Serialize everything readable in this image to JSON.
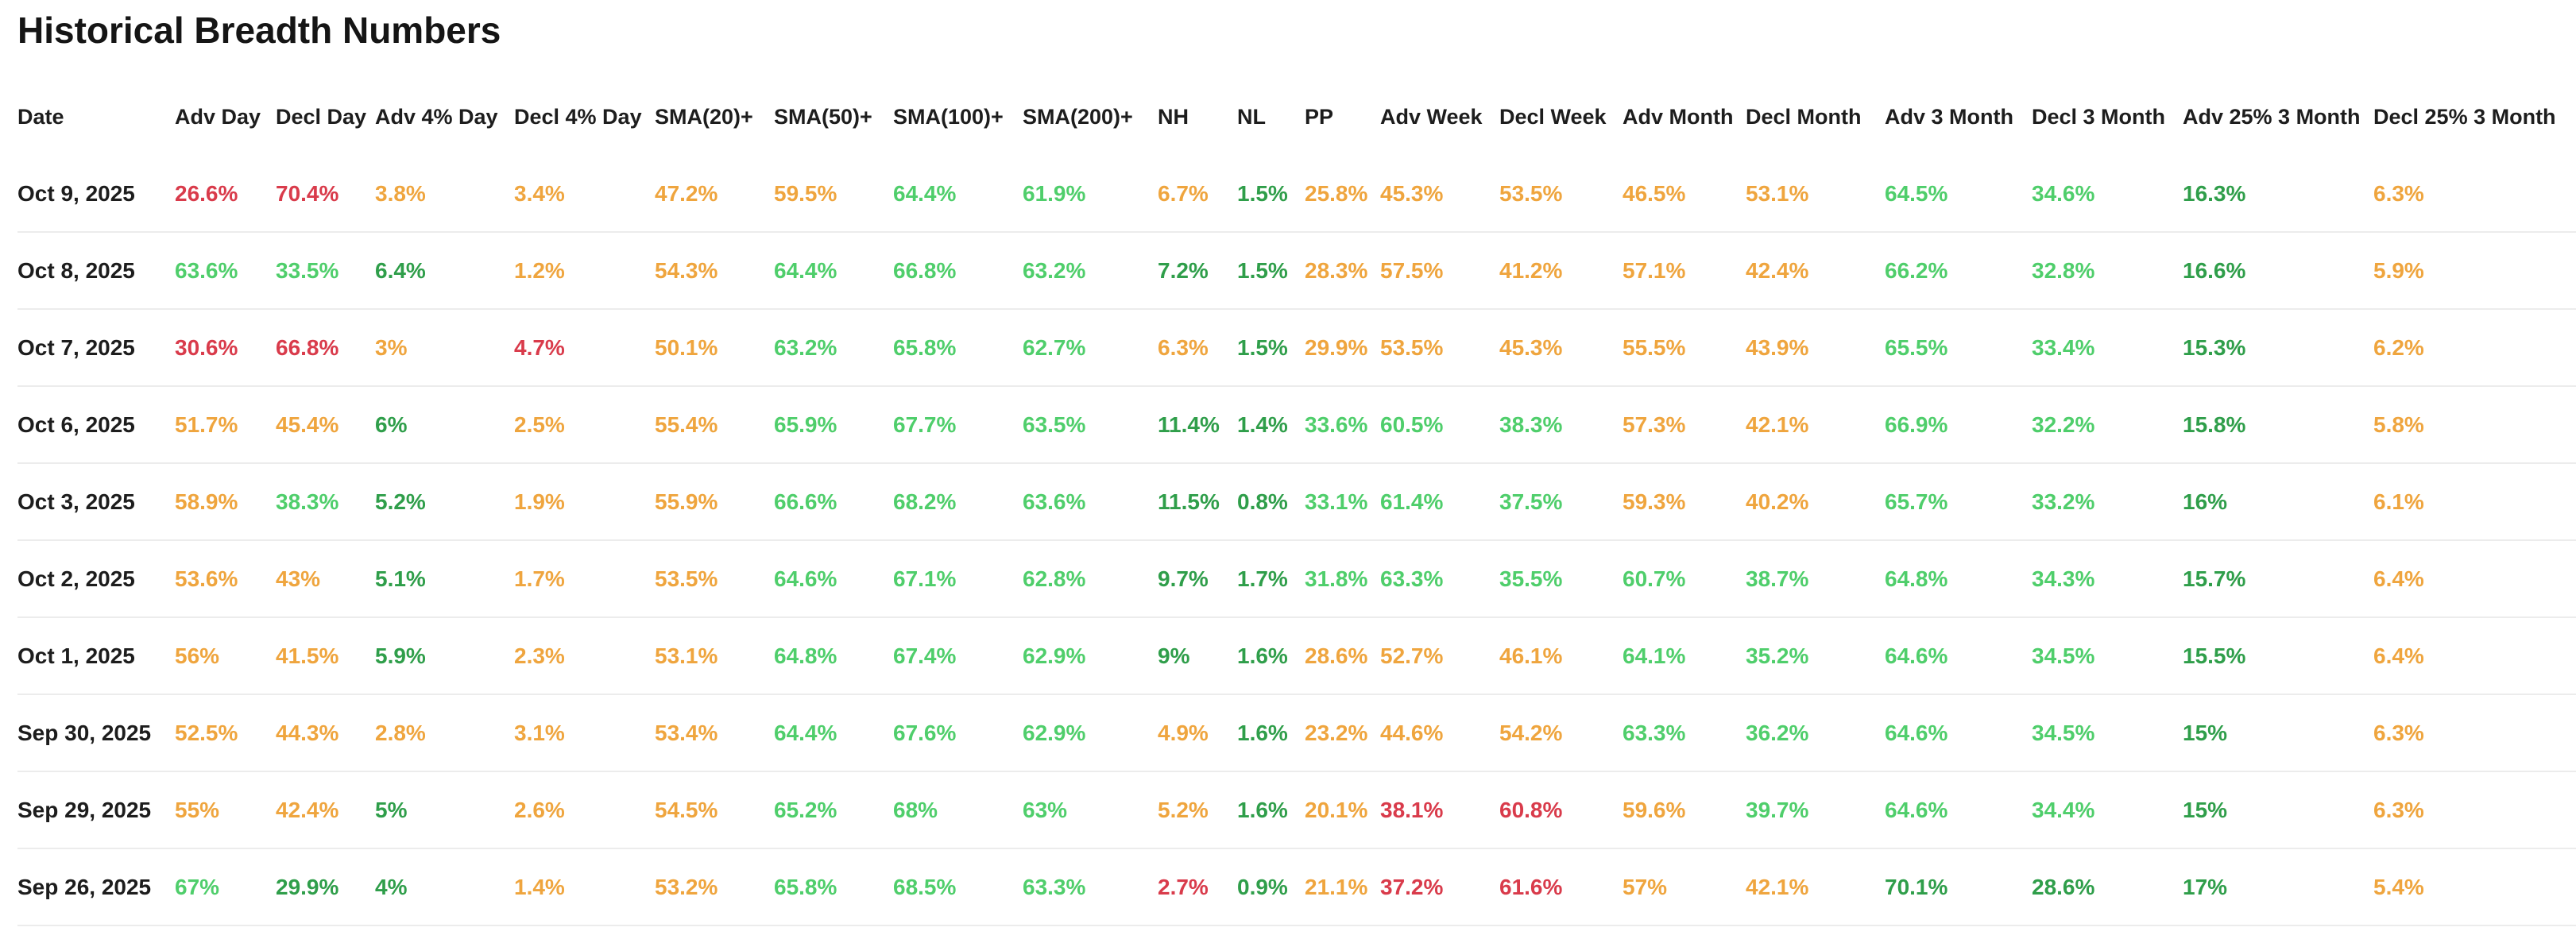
{
  "title": "Historical Breadth Numbers",
  "colors": {
    "red": "#d93b4b",
    "orange": "#efa53e",
    "green": "#4fce6b",
    "dark_green": "#2f9e4a",
    "heading_text": "#1d1d1d",
    "row_divider": "#ececec"
  },
  "table": {
    "columns": [
      {
        "id": "date",
        "label": "Date"
      },
      {
        "id": "adv-day",
        "label": "Adv Day"
      },
      {
        "id": "decl-day",
        "label": "Decl Day"
      },
      {
        "id": "adv-4-day",
        "label": "Adv 4% Day"
      },
      {
        "id": "decl-4-day",
        "label": "Decl 4% Day"
      },
      {
        "id": "sma20",
        "label": "SMA(20)+"
      },
      {
        "id": "sma50",
        "label": "SMA(50)+"
      },
      {
        "id": "sma100",
        "label": "SMA(100)+"
      },
      {
        "id": "sma200",
        "label": "SMA(200)+"
      },
      {
        "id": "nh",
        "label": "NH"
      },
      {
        "id": "nl",
        "label": "NL"
      },
      {
        "id": "pp",
        "label": "PP"
      },
      {
        "id": "adv-week",
        "label": "Adv Week"
      },
      {
        "id": "decl-week",
        "label": "Decl Week"
      },
      {
        "id": "adv-month",
        "label": "Adv Month"
      },
      {
        "id": "decl-month",
        "label": "Decl Month"
      },
      {
        "id": "adv-3-month",
        "label": "Adv 3 Month"
      },
      {
        "id": "decl-3-month",
        "label": "Decl 3 Month"
      },
      {
        "id": "adv-25-3-month",
        "label": "Adv 25% 3 Month"
      },
      {
        "id": "decl-25-3-month",
        "label": "Decl 25% 3 Month"
      }
    ],
    "rows": [
      {
        "date": "Oct 9, 2025",
        "cells": [
          {
            "v": "26.6%",
            "c": "red"
          },
          {
            "v": "70.4%",
            "c": "red"
          },
          {
            "v": "3.8%",
            "c": "orange"
          },
          {
            "v": "3.4%",
            "c": "orange"
          },
          {
            "v": "47.2%",
            "c": "orange"
          },
          {
            "v": "59.5%",
            "c": "orange"
          },
          {
            "v": "64.4%",
            "c": "green"
          },
          {
            "v": "61.9%",
            "c": "green"
          },
          {
            "v": "6.7%",
            "c": "orange"
          },
          {
            "v": "1.5%",
            "c": "dark_green"
          },
          {
            "v": "25.8%",
            "c": "orange"
          },
          {
            "v": "45.3%",
            "c": "orange"
          },
          {
            "v": "53.5%",
            "c": "orange"
          },
          {
            "v": "46.5%",
            "c": "orange"
          },
          {
            "v": "53.1%",
            "c": "orange"
          },
          {
            "v": "64.5%",
            "c": "green"
          },
          {
            "v": "34.6%",
            "c": "green"
          },
          {
            "v": "16.3%",
            "c": "dark_green"
          },
          {
            "v": "6.3%",
            "c": "orange"
          }
        ]
      },
      {
        "date": "Oct 8, 2025",
        "cells": [
          {
            "v": "63.6%",
            "c": "green"
          },
          {
            "v": "33.5%",
            "c": "green"
          },
          {
            "v": "6.4%",
            "c": "dark_green"
          },
          {
            "v": "1.2%",
            "c": "orange"
          },
          {
            "v": "54.3%",
            "c": "orange"
          },
          {
            "v": "64.4%",
            "c": "green"
          },
          {
            "v": "66.8%",
            "c": "green"
          },
          {
            "v": "63.2%",
            "c": "green"
          },
          {
            "v": "7.2%",
            "c": "dark_green"
          },
          {
            "v": "1.5%",
            "c": "dark_green"
          },
          {
            "v": "28.3%",
            "c": "orange"
          },
          {
            "v": "57.5%",
            "c": "orange"
          },
          {
            "v": "41.2%",
            "c": "orange"
          },
          {
            "v": "57.1%",
            "c": "orange"
          },
          {
            "v": "42.4%",
            "c": "orange"
          },
          {
            "v": "66.2%",
            "c": "green"
          },
          {
            "v": "32.8%",
            "c": "green"
          },
          {
            "v": "16.6%",
            "c": "dark_green"
          },
          {
            "v": "5.9%",
            "c": "orange"
          }
        ]
      },
      {
        "date": "Oct 7, 2025",
        "cells": [
          {
            "v": "30.6%",
            "c": "red"
          },
          {
            "v": "66.8%",
            "c": "red"
          },
          {
            "v": "3%",
            "c": "orange"
          },
          {
            "v": "4.7%",
            "c": "red"
          },
          {
            "v": "50.1%",
            "c": "orange"
          },
          {
            "v": "63.2%",
            "c": "green"
          },
          {
            "v": "65.8%",
            "c": "green"
          },
          {
            "v": "62.7%",
            "c": "green"
          },
          {
            "v": "6.3%",
            "c": "orange"
          },
          {
            "v": "1.5%",
            "c": "dark_green"
          },
          {
            "v": "29.9%",
            "c": "orange"
          },
          {
            "v": "53.5%",
            "c": "orange"
          },
          {
            "v": "45.3%",
            "c": "orange"
          },
          {
            "v": "55.5%",
            "c": "orange"
          },
          {
            "v": "43.9%",
            "c": "orange"
          },
          {
            "v": "65.5%",
            "c": "green"
          },
          {
            "v": "33.4%",
            "c": "green"
          },
          {
            "v": "15.3%",
            "c": "dark_green"
          },
          {
            "v": "6.2%",
            "c": "orange"
          }
        ]
      },
      {
        "date": "Oct 6, 2025",
        "cells": [
          {
            "v": "51.7%",
            "c": "orange"
          },
          {
            "v": "45.4%",
            "c": "orange"
          },
          {
            "v": "6%",
            "c": "dark_green"
          },
          {
            "v": "2.5%",
            "c": "orange"
          },
          {
            "v": "55.4%",
            "c": "orange"
          },
          {
            "v": "65.9%",
            "c": "green"
          },
          {
            "v": "67.7%",
            "c": "green"
          },
          {
            "v": "63.5%",
            "c": "green"
          },
          {
            "v": "11.4%",
            "c": "dark_green"
          },
          {
            "v": "1.4%",
            "c": "dark_green"
          },
          {
            "v": "33.6%",
            "c": "green"
          },
          {
            "v": "60.5%",
            "c": "green"
          },
          {
            "v": "38.3%",
            "c": "green"
          },
          {
            "v": "57.3%",
            "c": "orange"
          },
          {
            "v": "42.1%",
            "c": "orange"
          },
          {
            "v": "66.9%",
            "c": "green"
          },
          {
            "v": "32.2%",
            "c": "green"
          },
          {
            "v": "15.8%",
            "c": "dark_green"
          },
          {
            "v": "5.8%",
            "c": "orange"
          }
        ]
      },
      {
        "date": "Oct 3, 2025",
        "cells": [
          {
            "v": "58.9%",
            "c": "orange"
          },
          {
            "v": "38.3%",
            "c": "green"
          },
          {
            "v": "5.2%",
            "c": "dark_green"
          },
          {
            "v": "1.9%",
            "c": "orange"
          },
          {
            "v": "55.9%",
            "c": "orange"
          },
          {
            "v": "66.6%",
            "c": "green"
          },
          {
            "v": "68.2%",
            "c": "green"
          },
          {
            "v": "63.6%",
            "c": "green"
          },
          {
            "v": "11.5%",
            "c": "dark_green"
          },
          {
            "v": "0.8%",
            "c": "dark_green"
          },
          {
            "v": "33.1%",
            "c": "green"
          },
          {
            "v": "61.4%",
            "c": "green"
          },
          {
            "v": "37.5%",
            "c": "green"
          },
          {
            "v": "59.3%",
            "c": "orange"
          },
          {
            "v": "40.2%",
            "c": "orange"
          },
          {
            "v": "65.7%",
            "c": "green"
          },
          {
            "v": "33.2%",
            "c": "green"
          },
          {
            "v": "16%",
            "c": "dark_green"
          },
          {
            "v": "6.1%",
            "c": "orange"
          }
        ]
      },
      {
        "date": "Oct 2, 2025",
        "cells": [
          {
            "v": "53.6%",
            "c": "orange"
          },
          {
            "v": "43%",
            "c": "orange"
          },
          {
            "v": "5.1%",
            "c": "dark_green"
          },
          {
            "v": "1.7%",
            "c": "orange"
          },
          {
            "v": "53.5%",
            "c": "orange"
          },
          {
            "v": "64.6%",
            "c": "green"
          },
          {
            "v": "67.1%",
            "c": "green"
          },
          {
            "v": "62.8%",
            "c": "green"
          },
          {
            "v": "9.7%",
            "c": "dark_green"
          },
          {
            "v": "1.7%",
            "c": "dark_green"
          },
          {
            "v": "31.8%",
            "c": "green"
          },
          {
            "v": "63.3%",
            "c": "green"
          },
          {
            "v": "35.5%",
            "c": "green"
          },
          {
            "v": "60.7%",
            "c": "green"
          },
          {
            "v": "38.7%",
            "c": "green"
          },
          {
            "v": "64.8%",
            "c": "green"
          },
          {
            "v": "34.3%",
            "c": "green"
          },
          {
            "v": "15.7%",
            "c": "dark_green"
          },
          {
            "v": "6.4%",
            "c": "orange"
          }
        ]
      },
      {
        "date": "Oct 1, 2025",
        "cells": [
          {
            "v": "56%",
            "c": "orange"
          },
          {
            "v": "41.5%",
            "c": "orange"
          },
          {
            "v": "5.9%",
            "c": "dark_green"
          },
          {
            "v": "2.3%",
            "c": "orange"
          },
          {
            "v": "53.1%",
            "c": "orange"
          },
          {
            "v": "64.8%",
            "c": "green"
          },
          {
            "v": "67.4%",
            "c": "green"
          },
          {
            "v": "62.9%",
            "c": "green"
          },
          {
            "v": "9%",
            "c": "dark_green"
          },
          {
            "v": "1.6%",
            "c": "dark_green"
          },
          {
            "v": "28.6%",
            "c": "orange"
          },
          {
            "v": "52.7%",
            "c": "orange"
          },
          {
            "v": "46.1%",
            "c": "orange"
          },
          {
            "v": "64.1%",
            "c": "green"
          },
          {
            "v": "35.2%",
            "c": "green"
          },
          {
            "v": "64.6%",
            "c": "green"
          },
          {
            "v": "34.5%",
            "c": "green"
          },
          {
            "v": "15.5%",
            "c": "dark_green"
          },
          {
            "v": "6.4%",
            "c": "orange"
          }
        ]
      },
      {
        "date": "Sep 30, 2025",
        "cells": [
          {
            "v": "52.5%",
            "c": "orange"
          },
          {
            "v": "44.3%",
            "c": "orange"
          },
          {
            "v": "2.8%",
            "c": "orange"
          },
          {
            "v": "3.1%",
            "c": "orange"
          },
          {
            "v": "53.4%",
            "c": "orange"
          },
          {
            "v": "64.4%",
            "c": "green"
          },
          {
            "v": "67.6%",
            "c": "green"
          },
          {
            "v": "62.9%",
            "c": "green"
          },
          {
            "v": "4.9%",
            "c": "orange"
          },
          {
            "v": "1.6%",
            "c": "dark_green"
          },
          {
            "v": "23.2%",
            "c": "orange"
          },
          {
            "v": "44.6%",
            "c": "orange"
          },
          {
            "v": "54.2%",
            "c": "orange"
          },
          {
            "v": "63.3%",
            "c": "green"
          },
          {
            "v": "36.2%",
            "c": "green"
          },
          {
            "v": "64.6%",
            "c": "green"
          },
          {
            "v": "34.5%",
            "c": "green"
          },
          {
            "v": "15%",
            "c": "dark_green"
          },
          {
            "v": "6.3%",
            "c": "orange"
          }
        ]
      },
      {
        "date": "Sep 29, 2025",
        "cells": [
          {
            "v": "55%",
            "c": "orange"
          },
          {
            "v": "42.4%",
            "c": "orange"
          },
          {
            "v": "5%",
            "c": "dark_green"
          },
          {
            "v": "2.6%",
            "c": "orange"
          },
          {
            "v": "54.5%",
            "c": "orange"
          },
          {
            "v": "65.2%",
            "c": "green"
          },
          {
            "v": "68%",
            "c": "green"
          },
          {
            "v": "63%",
            "c": "green"
          },
          {
            "v": "5.2%",
            "c": "orange"
          },
          {
            "v": "1.6%",
            "c": "dark_green"
          },
          {
            "v": "20.1%",
            "c": "orange"
          },
          {
            "v": "38.1%",
            "c": "red"
          },
          {
            "v": "60.8%",
            "c": "red"
          },
          {
            "v": "59.6%",
            "c": "orange"
          },
          {
            "v": "39.7%",
            "c": "green"
          },
          {
            "v": "64.6%",
            "c": "green"
          },
          {
            "v": "34.4%",
            "c": "green"
          },
          {
            "v": "15%",
            "c": "dark_green"
          },
          {
            "v": "6.3%",
            "c": "orange"
          }
        ]
      },
      {
        "date": "Sep 26, 2025",
        "cells": [
          {
            "v": "67%",
            "c": "green"
          },
          {
            "v": "29.9%",
            "c": "dark_green"
          },
          {
            "v": "4%",
            "c": "dark_green"
          },
          {
            "v": "1.4%",
            "c": "orange"
          },
          {
            "v": "53.2%",
            "c": "orange"
          },
          {
            "v": "65.8%",
            "c": "green"
          },
          {
            "v": "68.5%",
            "c": "green"
          },
          {
            "v": "63.3%",
            "c": "green"
          },
          {
            "v": "2.7%",
            "c": "red"
          },
          {
            "v": "0.9%",
            "c": "dark_green"
          },
          {
            "v": "21.1%",
            "c": "orange"
          },
          {
            "v": "37.2%",
            "c": "red"
          },
          {
            "v": "61.6%",
            "c": "red"
          },
          {
            "v": "57%",
            "c": "orange"
          },
          {
            "v": "42.1%",
            "c": "orange"
          },
          {
            "v": "70.1%",
            "c": "dark_green"
          },
          {
            "v": "28.6%",
            "c": "dark_green"
          },
          {
            "v": "17%",
            "c": "dark_green"
          },
          {
            "v": "5.4%",
            "c": "orange"
          }
        ]
      }
    ]
  }
}
